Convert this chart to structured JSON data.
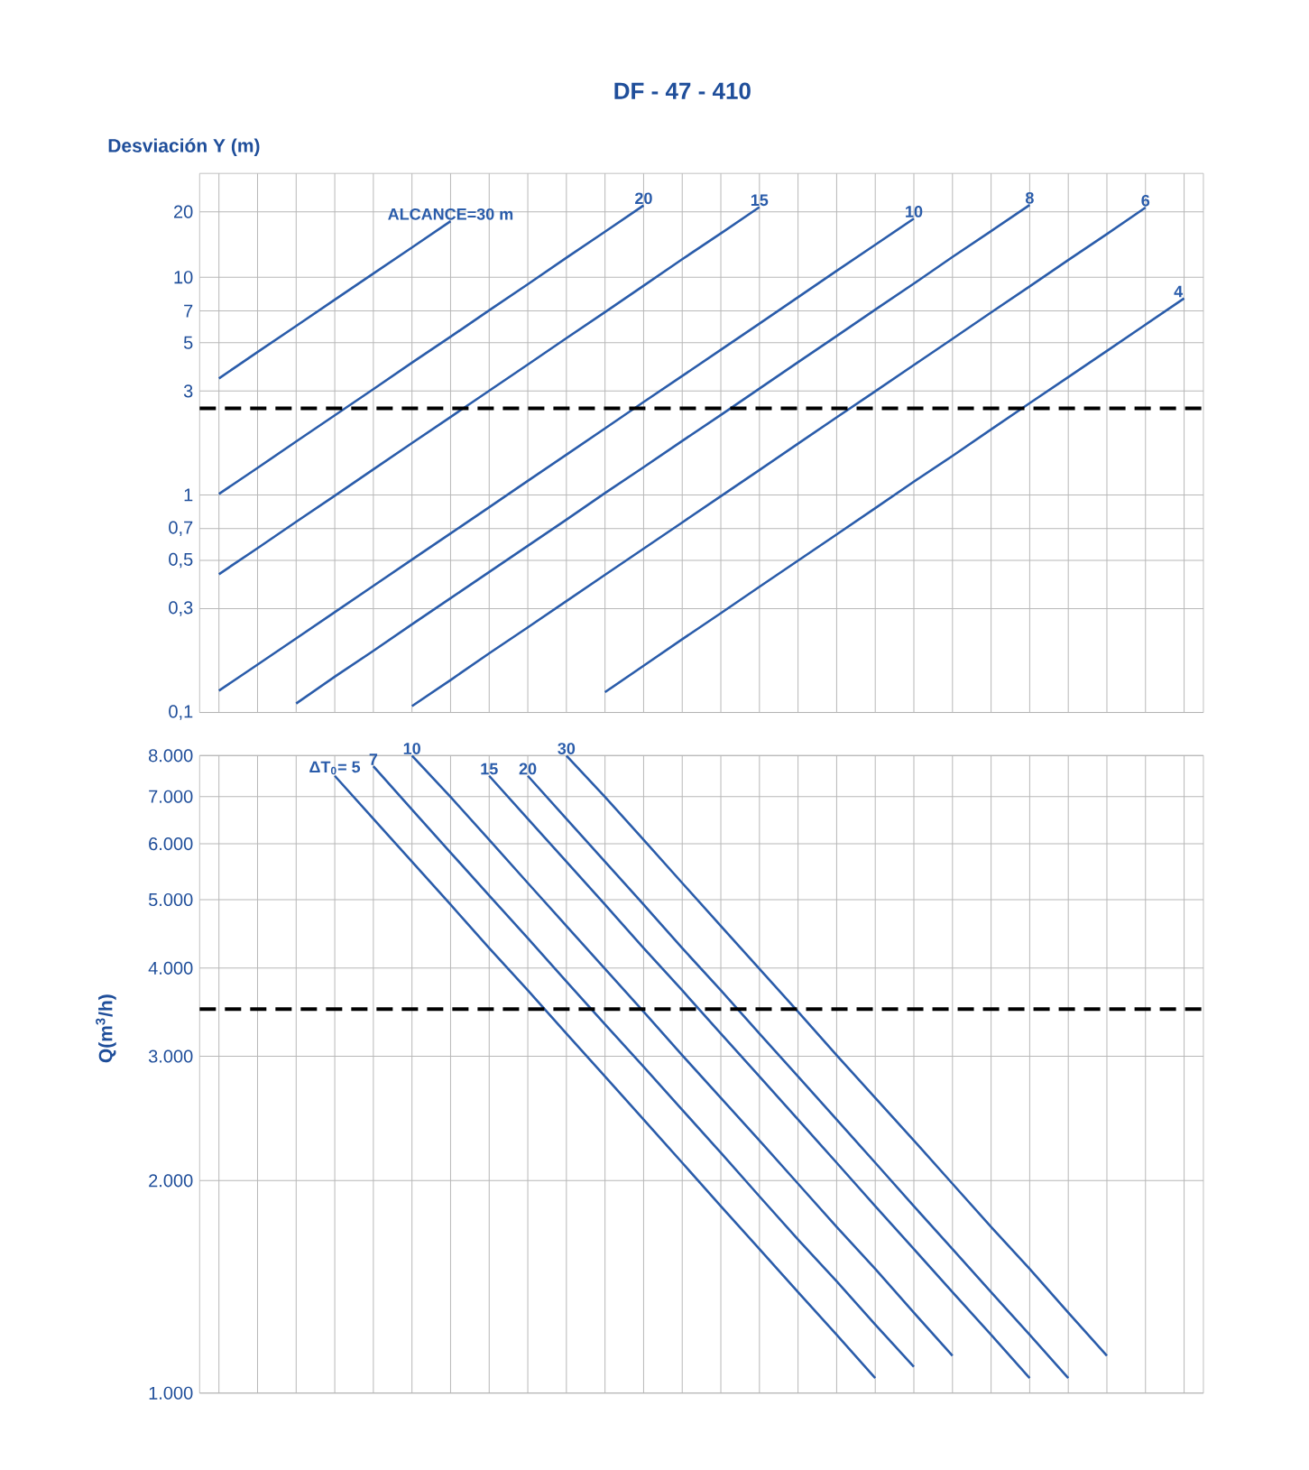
{
  "chart_data": [
    {
      "type": "line",
      "title": "DF - 47 - 410",
      "ylabel": "Desviación Y (m)",
      "categories": [
        null,
        null,
        null,
        null,
        null,
        null,
        null,
        null,
        null,
        null,
        null,
        null,
        null,
        null,
        null,
        null,
        null,
        null,
        null,
        null,
        null,
        null,
        null,
        null,
        null,
        null
      ],
      "log": true,
      "grid": true,
      "legend": false,
      "tick_labels": "y",
      "marker": "none",
      "ylim": [
        0.1,
        30
      ],
      "yticks": [
        {
          "value": 0.1,
          "label": "0,1"
        },
        {
          "value": 0.3,
          "label": "0,3"
        },
        {
          "value": 0.5,
          "label": "0,5"
        },
        {
          "value": 0.7,
          "label": "0,7"
        },
        1,
        3,
        5,
        7,
        10,
        20
      ],
      "ref_lines": [
        {
          "axis": "y",
          "value": 2.5,
          "color": "#000000",
          "line_style": "dashed"
        }
      ],
      "series": [
        {
          "name": "ALCANCE=30 m",
          "color": "#2a5caa",
          "values": [
            3.43,
            4.53,
            5.97,
            7.89,
            10.4,
            13.7,
            18.1,
            null,
            null,
            null,
            null,
            null,
            null,
            null,
            null,
            null,
            null,
            null,
            null,
            null,
            null,
            null,
            null,
            null,
            null,
            null
          ]
        },
        {
          "name": "20",
          "color": "#2a5caa",
          "values": [
            1.01,
            1.33,
            1.76,
            2.32,
            3.06,
            4.05,
            5.33,
            7.05,
            9.29,
            12.3,
            16.2,
            21.4,
            null,
            null,
            null,
            null,
            null,
            null,
            null,
            null,
            null,
            null,
            null,
            null,
            null,
            null
          ]
        },
        {
          "name": "15",
          "color": "#2a5caa",
          "values": [
            0.432,
            0.569,
            0.752,
            0.991,
            1.31,
            1.73,
            2.28,
            3.01,
            3.97,
            5.25,
            6.92,
            9.14,
            12.1,
            15.9,
            21.0,
            null,
            null,
            null,
            null,
            null,
            null,
            null,
            null,
            null,
            null,
            null
          ]
        },
        {
          "name": "10",
          "color": "#2a5caa",
          "values": [
            0.126,
            0.166,
            0.219,
            0.289,
            0.382,
            0.504,
            0.665,
            0.877,
            1.16,
            1.53,
            2.02,
            2.67,
            3.52,
            4.64,
            6.12,
            8.09,
            10.7,
            14.1,
            18.6,
            null,
            null,
            null,
            null,
            null,
            null,
            null
          ]
        },
        {
          "name": "8",
          "color": "#2a5caa",
          "values": [
            null,
            null,
            0.11,
            0.146,
            0.192,
            0.254,
            0.335,
            0.442,
            0.583,
            0.769,
            1.02,
            1.34,
            1.77,
            2.33,
            3.08,
            4.07,
            5.37,
            7.1,
            9.35,
            12.4,
            16.3,
            21.5,
            null,
            null,
            null,
            null
          ]
        },
        {
          "name": "6",
          "color": "#2a5caa",
          "values": [
            null,
            null,
            null,
            null,
            null,
            0.107,
            0.141,
            0.187,
            0.246,
            0.325,
            0.429,
            0.566,
            0.747,
            0.986,
            1.3,
            1.72,
            2.27,
            2.99,
            3.95,
            5.21,
            6.89,
            9.08,
            12.0,
            15.8,
            20.9,
            null
          ]
        },
        {
          "name": "4",
          "color": "#2a5caa",
          "values": [
            null,
            null,
            null,
            null,
            null,
            null,
            null,
            null,
            null,
            null,
            0.124,
            0.164,
            0.217,
            0.286,
            0.378,
            0.499,
            0.658,
            0.869,
            1.15,
            1.51,
            2.0,
            2.64,
            3.48,
            4.59,
            6.06,
            8.0
          ]
        }
      ]
    },
    {
      "type": "line",
      "ylabel": "Q(m$^{3}$/h)",
      "categories": [
        null,
        null,
        null,
        null,
        null,
        null,
        null,
        null,
        null,
        null,
        null,
        null,
        null,
        null,
        null,
        null,
        null,
        null,
        null,
        null,
        null,
        null,
        null,
        null,
        null,
        null
      ],
      "log": true,
      "grid": true,
      "legend": false,
      "tick_labels": "y",
      "marker": "none",
      "ylim": [
        1000,
        8000
      ],
      "yticks": [
        {
          "value": 1000,
          "label": "1.000"
        },
        {
          "value": 2000,
          "label": "2.000"
        },
        {
          "value": 3000,
          "label": "3.000"
        },
        {
          "value": 4000,
          "label": "4.000"
        },
        {
          "value": 5000,
          "label": "5.000"
        },
        {
          "value": 6000,
          "label": "6.000"
        },
        {
          "value": 7000,
          "label": "7.000"
        },
        {
          "value": 8000,
          "label": "8.000"
        }
      ],
      "ref_lines": [
        {
          "axis": "y",
          "value": 3500,
          "color": "#000000",
          "line_style": "dashed"
        }
      ],
      "series": [
        {
          "name": "ΔT$_{0}$= 5",
          "color": "#2a5caa",
          "values": [
            null,
            null,
            null,
            7490,
            6510,
            5660,
            4920,
            4270,
            3720,
            3230,
            2810,
            2440,
            2120,
            1840,
            1600,
            1390,
            1210,
            1050,
            null,
            null,
            null,
            null,
            null,
            null,
            null,
            null
          ]
        },
        {
          "name": "7",
          "color": "#2a5caa",
          "values": [
            null,
            null,
            null,
            null,
            7730,
            6710,
            5830,
            5070,
            4410,
            3830,
            3330,
            2900,
            2520,
            2190,
            1900,
            1650,
            1440,
            1250,
            1090,
            null,
            null,
            null,
            null,
            null,
            null,
            null
          ]
        },
        {
          "name": "10",
          "color": "#2a5caa",
          "values": [
            null,
            null,
            null,
            null,
            null,
            8000,
            6990,
            6080,
            5280,
            4590,
            3990,
            3470,
            3010,
            2620,
            2280,
            1980,
            1720,
            1500,
            1300,
            1130,
            null,
            null,
            null,
            null,
            null,
            null
          ]
        },
        {
          "name": "15",
          "color": "#2a5caa",
          "values": [
            null,
            null,
            null,
            null,
            null,
            null,
            null,
            7490,
            6510,
            5660,
            4920,
            4270,
            3720,
            3230,
            2810,
            2440,
            2120,
            1840,
            1600,
            1390,
            1210,
            1050,
            null,
            null,
            null,
            null
          ]
        },
        {
          "name": "20",
          "color": "#2a5caa",
          "values": [
            null,
            null,
            null,
            null,
            null,
            null,
            null,
            null,
            7490,
            6510,
            5660,
            4920,
            4270,
            3720,
            3230,
            2810,
            2440,
            2120,
            1840,
            1600,
            1390,
            1210,
            1050,
            null,
            null,
            null
          ]
        },
        {
          "name": "30",
          "color": "#2a5caa",
          "values": [
            null,
            null,
            null,
            null,
            null,
            null,
            null,
            null,
            null,
            8000,
            6990,
            6080,
            5280,
            4590,
            3990,
            3470,
            3010,
            2620,
            2280,
            1980,
            1720,
            1500,
            1300,
            1130,
            null,
            null
          ]
        }
      ]
    }
  ]
}
